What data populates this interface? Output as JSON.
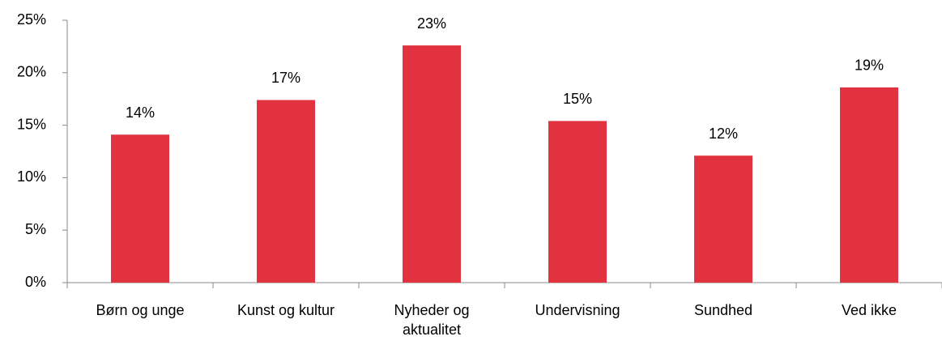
{
  "chart_data": {
    "type": "bar",
    "categories": [
      "Børn og unge",
      "Kunst og kultur",
      "Nyheder og aktualitet",
      "Undervisning",
      "Sundhed",
      "Ved ikke"
    ],
    "values": [
      14.1,
      17.4,
      22.6,
      15.4,
      12.1,
      18.6
    ],
    "value_labels": [
      "14%",
      "17%",
      "23%",
      "15%",
      "12%",
      "19%"
    ],
    "color": "#e3323f",
    "ylim": [
      0,
      25
    ],
    "yticks": [
      {
        "value": 0,
        "label": "0%"
      },
      {
        "value": 5,
        "label": "5%"
      },
      {
        "value": 10,
        "label": "10%"
      },
      {
        "value": 15,
        "label": "15%"
      },
      {
        "value": 20,
        "label": "20%"
      },
      {
        "value": 25,
        "label": "25%"
      }
    ],
    "grid": false
  }
}
